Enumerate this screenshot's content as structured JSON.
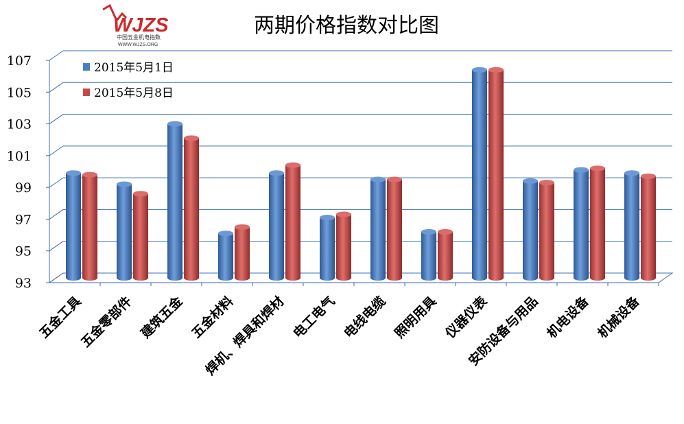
{
  "logo": {
    "mark": "WJZS",
    "line1": "中国五金机电指数",
    "line2": "WWW.WJZS.ORG",
    "color": "#cc2a2a"
  },
  "chart_data": {
    "type": "bar",
    "title": "两期价格指数对比图",
    "categories": [
      "五金工具",
      "五金零部件",
      "建筑五金",
      "五金材料",
      "焊机、焊具和焊材",
      "电工电气",
      "电线电缆",
      "照明用具",
      "仪器仪表",
      "安防设备与用品",
      "机电设备",
      "机械设备"
    ],
    "series": [
      {
        "name": "2015年5月1日",
        "color": "#4a7ec4",
        "values": [
          99.6,
          98.9,
          102.7,
          95.8,
          99.6,
          96.8,
          99.2,
          95.9,
          106.1,
          99.1,
          99.8,
          99.6
        ]
      },
      {
        "name": "2015年5月8日",
        "color": "#c44a48",
        "values": [
          99.5,
          98.3,
          101.8,
          96.2,
          100.1,
          97.0,
          99.2,
          95.9,
          106.1,
          99.0,
          99.9,
          99.4
        ]
      }
    ],
    "ylim": [
      93,
      107
    ],
    "yticks": [
      "93",
      "95",
      "97",
      "99",
      "101",
      "103",
      "105",
      "107"
    ],
    "grid": true,
    "legend": "top-left",
    "xlabel": "",
    "ylabel": ""
  }
}
